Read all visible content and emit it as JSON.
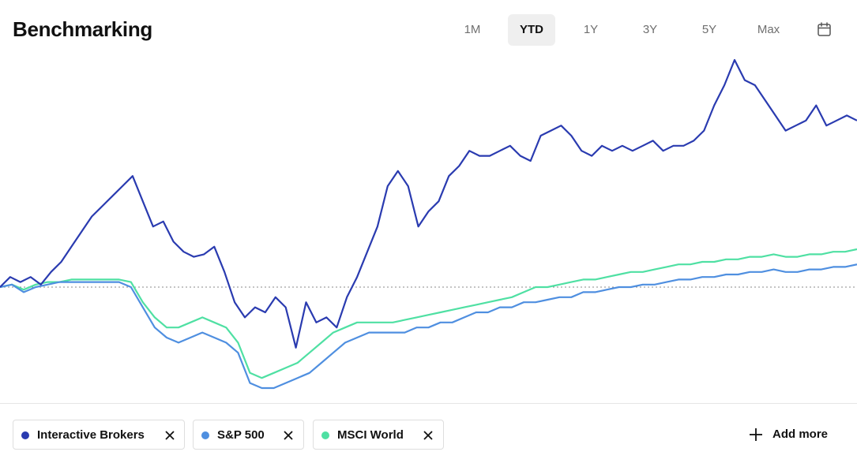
{
  "header": {
    "title": "Benchmarking"
  },
  "time_ranges": {
    "options": [
      "1M",
      "YTD",
      "1Y",
      "3Y",
      "5Y",
      "Max"
    ],
    "selected": "YTD",
    "calendar_icon": "calendar-icon"
  },
  "legend": {
    "items": [
      {
        "label": "Interactive Brokers",
        "color": "#2a3bb0",
        "remove_icon": "close-icon"
      },
      {
        "label": "S&P 500",
        "color": "#4f8fe0",
        "remove_icon": "close-icon"
      },
      {
        "label": "MSCI World",
        "color": "#4fe0a3",
        "remove_icon": "close-icon"
      }
    ],
    "add_more_label": "Add more",
    "add_more_icon": "plus-icon"
  },
  "chart_data": {
    "type": "line",
    "grid": false,
    "baseline": 0,
    "baseline_style": "dotted",
    "x_axis_labels_shown": false,
    "y_axis_labels_shown": false,
    "series": [
      {
        "name": "Interactive Brokers",
        "color": "#2a3bb0",
        "values": [
          0.0,
          2.0,
          1.0,
          2.0,
          0.5,
          3.0,
          5.0,
          8.0,
          11.0,
          14.0,
          16.0,
          18.0,
          20.0,
          22.0,
          17.0,
          12.0,
          13.0,
          9.0,
          7.0,
          6.0,
          6.5,
          8.0,
          3.0,
          -3.0,
          -6.0,
          -4.0,
          -5.0,
          -2.0,
          -4.0,
          -12.0,
          -3.0,
          -7.0,
          -6.0,
          -8.0,
          -2.0,
          2.0,
          7.0,
          12.0,
          20.0,
          23.0,
          20.0,
          12.0,
          15.0,
          17.0,
          22.0,
          24.0,
          27.0,
          26.0,
          26.0,
          27.0,
          28.0,
          26.0,
          25.0,
          30.0,
          31.0,
          32.0,
          30.0,
          27.0,
          26.0,
          28.0,
          27.0,
          28.0,
          27.0,
          28.0,
          29.0,
          27.0,
          28.0,
          28.0,
          29.0,
          31.0,
          36.0,
          40.0,
          45.0,
          41.0,
          40.0,
          37.0,
          34.0,
          31.0,
          32.0,
          33.0,
          36.0,
          32.0,
          33.0,
          34.0,
          33.0
        ]
      },
      {
        "name": "S&P 500",
        "color": "#4f8fe0",
        "values": [
          0.0,
          0.5,
          -1.0,
          0.0,
          0.5,
          1.0,
          1.0,
          1.0,
          1.0,
          1.0,
          1.0,
          0.0,
          -4.0,
          -8.0,
          -10.0,
          -11.0,
          -10.0,
          -9.0,
          -10.0,
          -11.0,
          -13.0,
          -19.0,
          -20.0,
          -20.0,
          -19.0,
          -18.0,
          -17.0,
          -15.0,
          -13.0,
          -11.0,
          -10.0,
          -9.0,
          -9.0,
          -9.0,
          -9.0,
          -8.0,
          -8.0,
          -7.0,
          -7.0,
          -6.0,
          -5.0,
          -5.0,
          -4.0,
          -4.0,
          -3.0,
          -3.0,
          -2.5,
          -2.0,
          -2.0,
          -1.0,
          -1.0,
          -0.5,
          0.0,
          0.0,
          0.5,
          0.5,
          1.0,
          1.5,
          1.5,
          2.0,
          2.0,
          2.5,
          2.5,
          3.0,
          3.0,
          3.5,
          3.0,
          3.0,
          3.5,
          3.5,
          4.0,
          4.0,
          4.5
        ]
      },
      {
        "name": "MSCI World",
        "color": "#4fe0a3",
        "values": [
          0.0,
          0.5,
          -0.5,
          0.5,
          1.0,
          1.0,
          1.5,
          1.5,
          1.5,
          1.5,
          1.5,
          1.0,
          -3.0,
          -6.0,
          -8.0,
          -8.0,
          -7.0,
          -6.0,
          -7.0,
          -8.0,
          -11.0,
          -17.0,
          -18.0,
          -17.0,
          -16.0,
          -15.0,
          -13.0,
          -11.0,
          -9.0,
          -8.0,
          -7.0,
          -7.0,
          -7.0,
          -7.0,
          -6.5,
          -6.0,
          -5.5,
          -5.0,
          -4.5,
          -4.0,
          -3.5,
          -3.0,
          -2.5,
          -2.0,
          -1.0,
          0.0,
          0.0,
          0.5,
          1.0,
          1.5,
          1.5,
          2.0,
          2.5,
          3.0,
          3.0,
          3.5,
          4.0,
          4.5,
          4.5,
          5.0,
          5.0,
          5.5,
          5.5,
          6.0,
          6.0,
          6.5,
          6.0,
          6.0,
          6.5,
          6.5,
          7.0,
          7.0,
          7.5
        ]
      }
    ]
  }
}
